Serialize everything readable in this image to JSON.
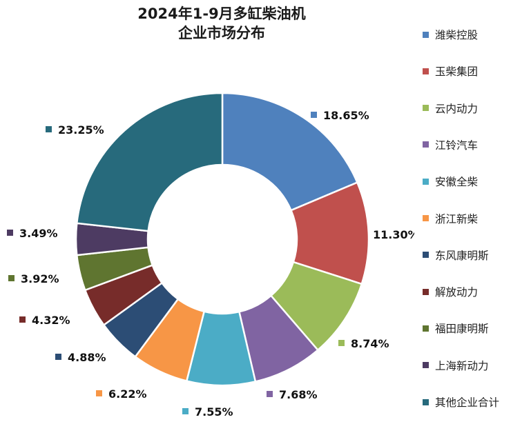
{
  "chart_data": {
    "type": "pie",
    "title_lines": [
      "2024年1-9月多缸柴油机",
      "企业市场分布"
    ],
    "legend_position": "right",
    "slices": [
      {
        "name": "潍柴控股",
        "value": 18.65,
        "label": "18.65%",
        "color": "#4F81BD"
      },
      {
        "name": "玉柴集团",
        "value": 11.3,
        "label": "11.30%",
        "color": "#C0504D"
      },
      {
        "name": "云内动力",
        "value": 8.74,
        "label": "8.74%",
        "color": "#9BBB59"
      },
      {
        "name": "江铃汽车",
        "value": 7.68,
        "label": "7.68%",
        "color": "#8064A2"
      },
      {
        "name": "安徽全柴",
        "value": 7.55,
        "label": "7.55%",
        "color": "#4BACC6"
      },
      {
        "name": "浙江新柴",
        "value": 6.22,
        "label": "6.22%",
        "color": "#F79646"
      },
      {
        "name": "东风康明斯",
        "value": 4.88,
        "label": "4.88%",
        "color": "#2C4D75"
      },
      {
        "name": "解放动力",
        "value": 4.32,
        "label": "4.32%",
        "color": "#772C2A"
      },
      {
        "name": "福田康明斯",
        "value": 3.92,
        "label": "3.92%",
        "color": "#5F7530"
      },
      {
        "name": "上海新动力",
        "value": 3.49,
        "label": "3.49%",
        "color": "#4D3B62"
      },
      {
        "name": "其他企业合计",
        "value": 23.25,
        "label": "23.25%",
        "color": "#276A7C"
      }
    ]
  }
}
